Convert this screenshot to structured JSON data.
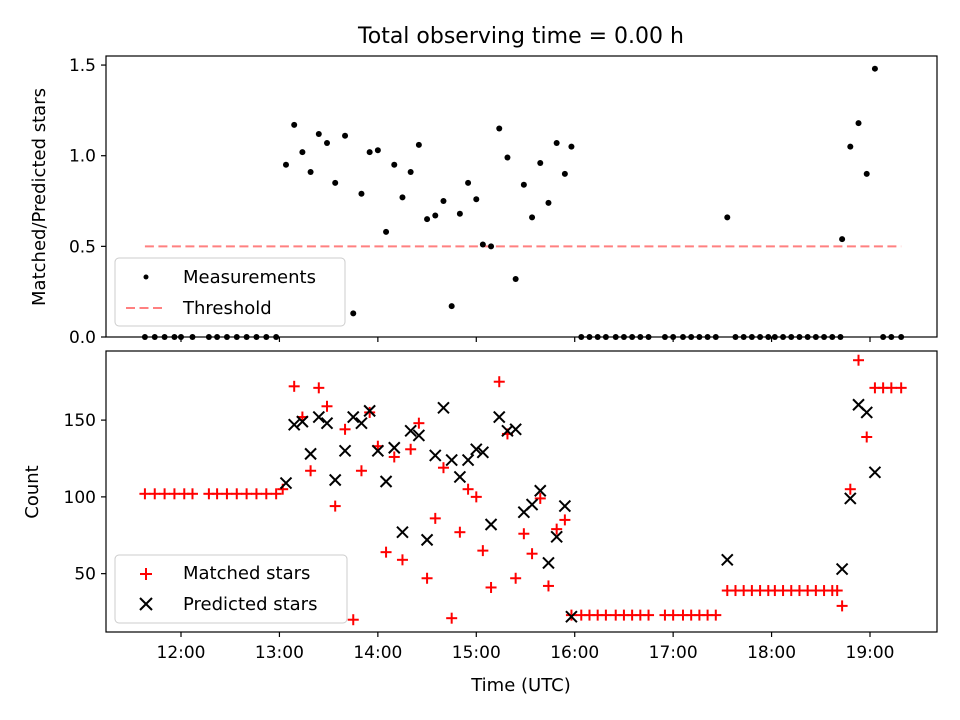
{
  "chart_data": {
    "title": "Total observing time = 0.00 h",
    "colors": {
      "measurement": "#000000",
      "threshold": "#ff8080",
      "matched": "#ff0000",
      "predicted": "#000000"
    },
    "panels": [
      {
        "type": "scatter",
        "ylabel": "Matched/Predicted stars",
        "ylim": [
          0,
          1.55
        ],
        "yticks": [
          0.0,
          0.5,
          1.0,
          1.5
        ],
        "ytick_labels": [
          "0.0",
          "0.5",
          "1.0",
          "1.5"
        ],
        "legend": {
          "position": "lower-left",
          "entries": [
            "Measurements",
            "Threshold"
          ]
        },
        "threshold": {
          "value": 0.5,
          "x_start": "11:38",
          "x_end": "19:19"
        },
        "measurements": [
          {
            "x": "11:38",
            "y": 0
          },
          {
            "x": "11:44",
            "y": 0
          },
          {
            "x": "11:50",
            "y": 0
          },
          {
            "x": "11:56",
            "y": 0
          },
          {
            "x": "12:00",
            "y": 0
          },
          {
            "x": "12:07",
            "y": 0
          },
          {
            "x": "12:17",
            "y": 0
          },
          {
            "x": "12:22",
            "y": 0
          },
          {
            "x": "12:28",
            "y": 0
          },
          {
            "x": "12:34",
            "y": 0
          },
          {
            "x": "12:40",
            "y": 0
          },
          {
            "x": "12:46",
            "y": 0
          },
          {
            "x": "12:52",
            "y": 0
          },
          {
            "x": "12:58",
            "y": 0
          },
          {
            "x": "13:04",
            "y": 0.95
          },
          {
            "x": "13:09",
            "y": 1.17
          },
          {
            "x": "13:14",
            "y": 1.02
          },
          {
            "x": "13:19",
            "y": 0.91
          },
          {
            "x": "13:24",
            "y": 1.12
          },
          {
            "x": "13:29",
            "y": 1.07
          },
          {
            "x": "13:34",
            "y": 0.85
          },
          {
            "x": "13:40",
            "y": 1.11
          },
          {
            "x": "13:45",
            "y": 0.13
          },
          {
            "x": "13:50",
            "y": 0.79
          },
          {
            "x": "13:55",
            "y": 1.02
          },
          {
            "x": "14:00",
            "y": 1.03
          },
          {
            "x": "14:05",
            "y": 0.58
          },
          {
            "x": "14:10",
            "y": 0.95
          },
          {
            "x": "14:15",
            "y": 0.77
          },
          {
            "x": "14:20",
            "y": 0.91
          },
          {
            "x": "14:25",
            "y": 1.06
          },
          {
            "x": "14:30",
            "y": 0.65
          },
          {
            "x": "14:35",
            "y": 0.67
          },
          {
            "x": "14:40",
            "y": 0.75
          },
          {
            "x": "14:45",
            "y": 0.17
          },
          {
            "x": "14:50",
            "y": 0.68
          },
          {
            "x": "14:55",
            "y": 0.85
          },
          {
            "x": "15:00",
            "y": 0.76
          },
          {
            "x": "15:04",
            "y": 0.51
          },
          {
            "x": "15:09",
            "y": 0.5
          },
          {
            "x": "15:14",
            "y": 1.15
          },
          {
            "x": "15:19",
            "y": 0.99
          },
          {
            "x": "15:24",
            "y": 0.32
          },
          {
            "x": "15:29",
            "y": 0.84
          },
          {
            "x": "15:34",
            "y": 0.66
          },
          {
            "x": "15:39",
            "y": 0.96
          },
          {
            "x": "15:44",
            "y": 0.74
          },
          {
            "x": "15:49",
            "y": 1.07
          },
          {
            "x": "15:54",
            "y": 0.9
          },
          {
            "x": "15:58",
            "y": 1.05
          },
          {
            "x": "16:04",
            "y": 0
          },
          {
            "x": "16:09",
            "y": 0
          },
          {
            "x": "16:14",
            "y": 0
          },
          {
            "x": "16:19",
            "y": 0
          },
          {
            "x": "16:25",
            "y": 0
          },
          {
            "x": "16:30",
            "y": 0
          },
          {
            "x": "16:35",
            "y": 0
          },
          {
            "x": "16:40",
            "y": 0
          },
          {
            "x": "16:45",
            "y": 0
          },
          {
            "x": "16:55",
            "y": 0
          },
          {
            "x": "17:00",
            "y": 0
          },
          {
            "x": "17:06",
            "y": 0
          },
          {
            "x": "17:11",
            "y": 0
          },
          {
            "x": "17:16",
            "y": 0
          },
          {
            "x": "17:21",
            "y": 0
          },
          {
            "x": "17:26",
            "y": 0
          },
          {
            "x": "17:33",
            "y": 0.66
          },
          {
            "x": "17:38",
            "y": 0
          },
          {
            "x": "17:43",
            "y": 0
          },
          {
            "x": "17:48",
            "y": 0
          },
          {
            "x": "17:53",
            "y": 0
          },
          {
            "x": "17:58",
            "y": 0
          },
          {
            "x": "18:02",
            "y": 0
          },
          {
            "x": "18:07",
            "y": 0
          },
          {
            "x": "18:12",
            "y": 0
          },
          {
            "x": "18:17",
            "y": 0
          },
          {
            "x": "18:22",
            "y": 0
          },
          {
            "x": "18:27",
            "y": 0
          },
          {
            "x": "18:32",
            "y": 0
          },
          {
            "x": "18:37",
            "y": 0
          },
          {
            "x": "18:42",
            "y": 0
          },
          {
            "x": "18:43",
            "y": 0.54
          },
          {
            "x": "18:48",
            "y": 1.05
          },
          {
            "x": "18:53",
            "y": 1.18
          },
          {
            "x": "18:58",
            "y": 0.9
          },
          {
            "x": "19:03",
            "y": 1.48
          },
          {
            "x": "19:08",
            "y": 0
          },
          {
            "x": "19:13",
            "y": 0
          },
          {
            "x": "19:19",
            "y": 0
          }
        ]
      },
      {
        "type": "scatter",
        "ylabel": "Count",
        "xlabel": "Time (UTC)",
        "ylim": [
          12,
          195
        ],
        "yticks": [
          50,
          100,
          150
        ],
        "ytick_labels": [
          "50",
          "100",
          "150"
        ],
        "xticks": [
          "12:00",
          "13:00",
          "14:00",
          "15:00",
          "16:00",
          "17:00",
          "18:00",
          "19:00"
        ],
        "legend": {
          "position": "lower-left",
          "entries": [
            "Matched stars",
            "Predicted stars"
          ]
        },
        "matched_stars": [
          {
            "x": "11:38",
            "y": 102
          },
          {
            "x": "11:44",
            "y": 102
          },
          {
            "x": "11:50",
            "y": 102
          },
          {
            "x": "11:56",
            "y": 102
          },
          {
            "x": "12:02",
            "y": 102
          },
          {
            "x": "12:07",
            "y": 102
          },
          {
            "x": "12:17",
            "y": 102
          },
          {
            "x": "12:22",
            "y": 102
          },
          {
            "x": "12:28",
            "y": 102
          },
          {
            "x": "12:34",
            "y": 102
          },
          {
            "x": "12:40",
            "y": 102
          },
          {
            "x": "12:46",
            "y": 102
          },
          {
            "x": "12:52",
            "y": 102
          },
          {
            "x": "12:58",
            "y": 102
          },
          {
            "x": "13:02",
            "y": 105
          },
          {
            "x": "13:09",
            "y": 172
          },
          {
            "x": "13:14",
            "y": 152
          },
          {
            "x": "13:19",
            "y": 117
          },
          {
            "x": "13:24",
            "y": 171
          },
          {
            "x": "13:29",
            "y": 159
          },
          {
            "x": "13:34",
            "y": 94
          },
          {
            "x": "13:40",
            "y": 144
          },
          {
            "x": "13:45",
            "y": 20
          },
          {
            "x": "13:50",
            "y": 117
          },
          {
            "x": "13:55",
            "y": 155
          },
          {
            "x": "14:00",
            "y": 133
          },
          {
            "x": "14:05",
            "y": 64
          },
          {
            "x": "14:10",
            "y": 126
          },
          {
            "x": "14:15",
            "y": 59
          },
          {
            "x": "14:20",
            "y": 131
          },
          {
            "x": "14:25",
            "y": 148
          },
          {
            "x": "14:30",
            "y": 47
          },
          {
            "x": "14:35",
            "y": 86
          },
          {
            "x": "14:40",
            "y": 119
          },
          {
            "x": "14:45",
            "y": 21
          },
          {
            "x": "14:50",
            "y": 77
          },
          {
            "x": "14:55",
            "y": 105
          },
          {
            "x": "15:00",
            "y": 100
          },
          {
            "x": "15:04",
            "y": 65
          },
          {
            "x": "15:09",
            "y": 41
          },
          {
            "x": "15:14",
            "y": 175
          },
          {
            "x": "15:19",
            "y": 141
          },
          {
            "x": "15:24",
            "y": 47
          },
          {
            "x": "15:29",
            "y": 76
          },
          {
            "x": "15:34",
            "y": 63
          },
          {
            "x": "15:39",
            "y": 99
          },
          {
            "x": "15:44",
            "y": 42
          },
          {
            "x": "15:49",
            "y": 79
          },
          {
            "x": "15:54",
            "y": 85
          },
          {
            "x": "15:58",
            "y": 23
          },
          {
            "x": "16:04",
            "y": 23
          },
          {
            "x": "16:09",
            "y": 23
          },
          {
            "x": "16:14",
            "y": 23
          },
          {
            "x": "16:19",
            "y": 23
          },
          {
            "x": "16:25",
            "y": 23
          },
          {
            "x": "16:30",
            "y": 23
          },
          {
            "x": "16:35",
            "y": 23
          },
          {
            "x": "16:40",
            "y": 23
          },
          {
            "x": "16:45",
            "y": 23
          },
          {
            "x": "16:55",
            "y": 23
          },
          {
            "x": "17:00",
            "y": 23
          },
          {
            "x": "17:06",
            "y": 23
          },
          {
            "x": "17:11",
            "y": 23
          },
          {
            "x": "17:16",
            "y": 23
          },
          {
            "x": "17:21",
            "y": 23
          },
          {
            "x": "17:26",
            "y": 23
          },
          {
            "x": "17:33",
            "y": 39
          },
          {
            "x": "17:38",
            "y": 39
          },
          {
            "x": "17:43",
            "y": 39
          },
          {
            "x": "17:48",
            "y": 39
          },
          {
            "x": "17:53",
            "y": 39
          },
          {
            "x": "17:58",
            "y": 39
          },
          {
            "x": "18:02",
            "y": 39
          },
          {
            "x": "18:07",
            "y": 39
          },
          {
            "x": "18:12",
            "y": 39
          },
          {
            "x": "18:17",
            "y": 39
          },
          {
            "x": "18:22",
            "y": 39
          },
          {
            "x": "18:27",
            "y": 39
          },
          {
            "x": "18:32",
            "y": 39
          },
          {
            "x": "18:37",
            "y": 39
          },
          {
            "x": "18:40",
            "y": 39
          },
          {
            "x": "18:43",
            "y": 29
          },
          {
            "x": "18:48",
            "y": 105
          },
          {
            "x": "18:53",
            "y": 189
          },
          {
            "x": "18:58",
            "y": 139
          },
          {
            "x": "19:03",
            "y": 171
          },
          {
            "x": "19:08",
            "y": 171
          },
          {
            "x": "19:13",
            "y": 171
          },
          {
            "x": "19:19",
            "y": 171
          }
        ],
        "predicted_stars": [
          {
            "x": "13:04",
            "y": 109
          },
          {
            "x": "13:09",
            "y": 147
          },
          {
            "x": "13:14",
            "y": 149
          },
          {
            "x": "13:19",
            "y": 128
          },
          {
            "x": "13:24",
            "y": 152
          },
          {
            "x": "13:29",
            "y": 148
          },
          {
            "x": "13:34",
            "y": 111
          },
          {
            "x": "13:40",
            "y": 130
          },
          {
            "x": "13:45",
            "y": 152
          },
          {
            "x": "13:50",
            "y": 148
          },
          {
            "x": "13:55",
            "y": 156
          },
          {
            "x": "14:00",
            "y": 130
          },
          {
            "x": "14:05",
            "y": 110
          },
          {
            "x": "14:10",
            "y": 132
          },
          {
            "x": "14:15",
            "y": 77
          },
          {
            "x": "14:20",
            "y": 143
          },
          {
            "x": "14:25",
            "y": 140
          },
          {
            "x": "14:30",
            "y": 72
          },
          {
            "x": "14:35",
            "y": 127
          },
          {
            "x": "14:40",
            "y": 158
          },
          {
            "x": "14:45",
            "y": 124
          },
          {
            "x": "14:50",
            "y": 113
          },
          {
            "x": "14:55",
            "y": 124
          },
          {
            "x": "15:00",
            "y": 131
          },
          {
            "x": "15:04",
            "y": 129
          },
          {
            "x": "15:09",
            "y": 82
          },
          {
            "x": "15:14",
            "y": 152
          },
          {
            "x": "15:19",
            "y": 143
          },
          {
            "x": "15:24",
            "y": 144
          },
          {
            "x": "15:29",
            "y": 90
          },
          {
            "x": "15:34",
            "y": 95
          },
          {
            "x": "15:39",
            "y": 104
          },
          {
            "x": "15:44",
            "y": 57
          },
          {
            "x": "15:49",
            "y": 74
          },
          {
            "x": "15:54",
            "y": 94
          },
          {
            "x": "15:58",
            "y": 22
          },
          {
            "x": "17:33",
            "y": 59
          },
          {
            "x": "18:43",
            "y": 53
          },
          {
            "x": "18:48",
            "y": 99
          },
          {
            "x": "18:53",
            "y": 160
          },
          {
            "x": "18:58",
            "y": 155
          },
          {
            "x": "19:03",
            "y": 116
          }
        ]
      }
    ]
  }
}
